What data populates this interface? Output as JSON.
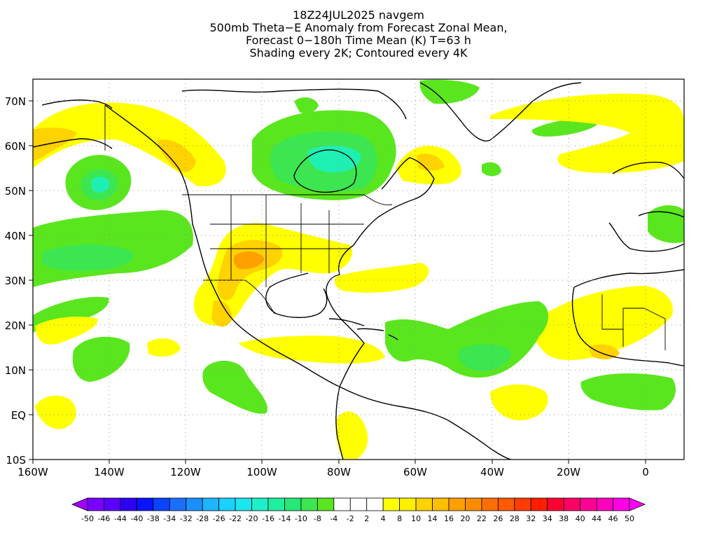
{
  "title": {
    "line1": "18Z24JUL2025 navgem",
    "line2": "500mb Theta−E Anomaly from Forecast Zonal Mean,",
    "line3": "Forecast 0−180h Time Mean (K) T=63 h",
    "line4": "Shading every 2K; Contoured every 4K"
  },
  "map": {
    "lon_range": [
      -160,
      10
    ],
    "lat_range": [
      -10,
      75
    ],
    "lat_ticks": [
      "70N",
      "60N",
      "50N",
      "40N",
      "30N",
      "20N",
      "10N",
      "EQ",
      "10S"
    ],
    "lon_ticks": [
      "160W",
      "140W",
      "120W",
      "100W",
      "80W",
      "60W",
      "40W",
      "20W",
      "0"
    ]
  },
  "colorbar": {
    "labels": [
      "-50",
      "-46",
      "-44",
      "-40",
      "-38",
      "-34",
      "-32",
      "-28",
      "-26",
      "-22",
      "-20",
      "-16",
      "-14",
      "-10",
      "-8",
      "-4",
      "-2",
      "2",
      "4",
      "8",
      "10",
      "14",
      "16",
      "20",
      "22",
      "26",
      "28",
      "32",
      "34",
      "38",
      "40",
      "44",
      "46",
      "50"
    ],
    "colors": [
      "#a000ff",
      "#7a00ff",
      "#5a00ff",
      "#2d00f0",
      "#0a14ff",
      "#0a44ff",
      "#1a6fff",
      "#1a90ff",
      "#1eb4ff",
      "#19d2ff",
      "#1ae6f0",
      "#1ef0c8",
      "#1ef0a0",
      "#28e678",
      "#3ce650",
      "#5ae61e",
      "#ffffff",
      "#ffffff",
      "#ffffff",
      "#ffff00",
      "#fff000",
      "#ffd200",
      "#ffbe00",
      "#ffa000",
      "#ff8c00",
      "#ff6e00",
      "#ff5a00",
      "#ff3c00",
      "#ff1e00",
      "#ff0032",
      "#ff0064",
      "#ff0096",
      "#ff00be",
      "#ff00e6",
      "#ff00ff"
    ]
  },
  "colors": {
    "pos_weak": "#ffff00",
    "pos_mid": "#ffd200",
    "pos_strong": "#ffa000",
    "neg_weak": "#5ae61e",
    "neg_mid": "#3ce650",
    "neg_strong": "#1ef0b4"
  }
}
